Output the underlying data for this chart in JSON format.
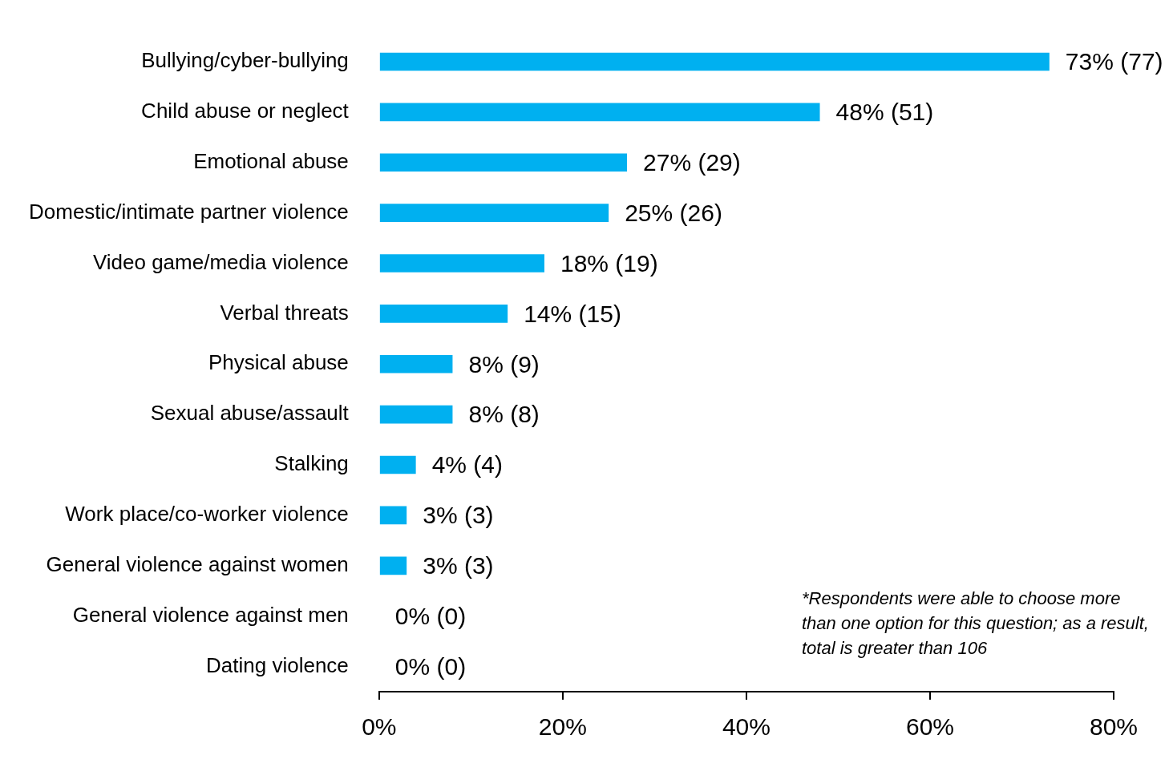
{
  "chart_data": {
    "type": "bar",
    "orientation": "horizontal",
    "categories": [
      "Bullying/cyber-bullying",
      "Child abuse or neglect",
      "Emotional abuse",
      "Domestic/intimate partner violence",
      "Video game/media violence",
      "Verbal threats",
      "Physical abuse",
      "Sexual abuse/assault",
      "Stalking",
      "Work place/co-worker violence",
      "General violence against women",
      "General violence against men",
      "Dating violence"
    ],
    "values": [
      73,
      48,
      27,
      25,
      18,
      14,
      8,
      8,
      4,
      3,
      3,
      0,
      0
    ],
    "value_labels": [
      "73% (77)",
      "48% (51)",
      "27% (29)",
      "25% (26)",
      "18% (19)",
      "14% (15)",
      "8% (9)",
      "8% (8)",
      "4% (4)",
      "3% (3)",
      "3% (3)",
      "0% (0)",
      "0% (0)"
    ],
    "color": "#00b0f0",
    "xlim": [
      0,
      80
    ],
    "xticks": [
      {
        "value": 0,
        "label": "0%"
      },
      {
        "value": 20,
        "label": "20%"
      },
      {
        "value": 40,
        "label": "40%"
      },
      {
        "value": 60,
        "label": "60%"
      },
      {
        "value": 80,
        "label": "80%"
      }
    ],
    "grid": false,
    "legend": false,
    "annotations": [
      "*Respondents were able to choose more than one option for this question; as a result, total is greater than 106"
    ]
  }
}
